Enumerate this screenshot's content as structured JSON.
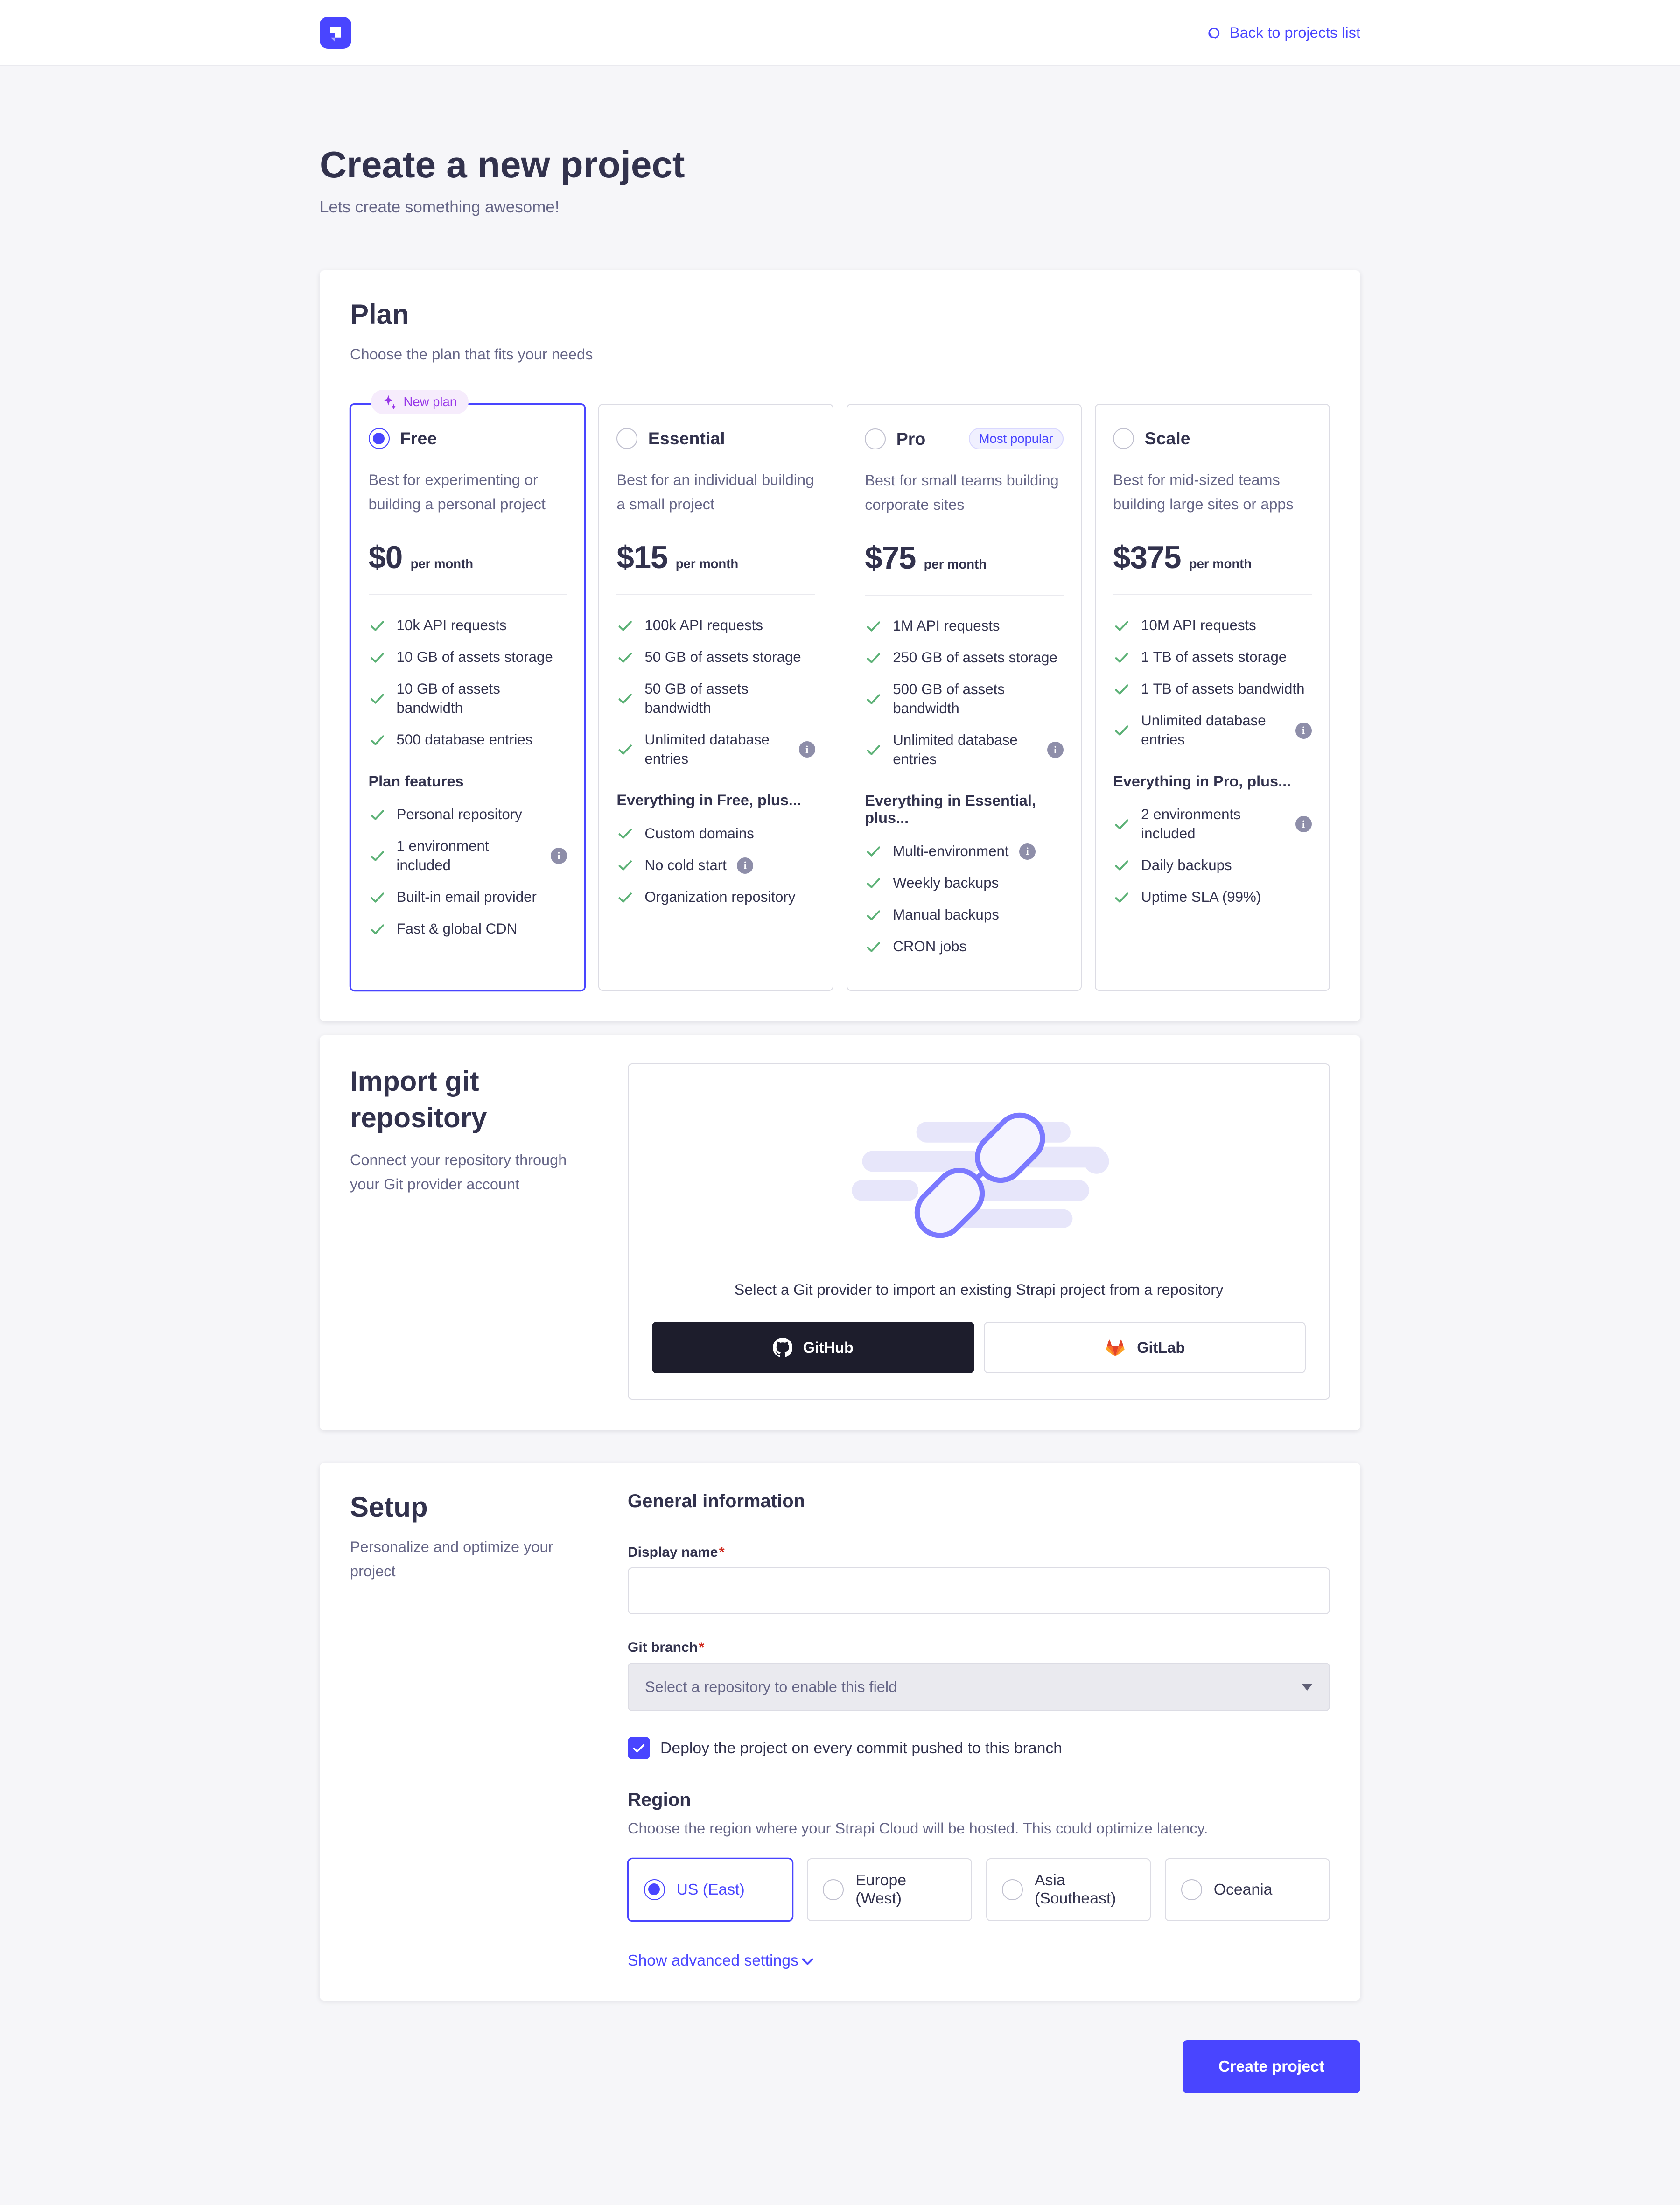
{
  "colors": {
    "primary": "#4945ff",
    "primary_light": "#f0f0ff",
    "purple_badge_bg": "#f6ecfc",
    "purple_badge_text": "#9736e8",
    "success_check": "#5cb176",
    "danger": "#d02b20",
    "text_dark": "#32324d",
    "text_gray": "#666687",
    "page_bg": "#f6f6f9",
    "github_btn_bg": "#1d1d2c",
    "gitlab_orange": "#fc6d26"
  },
  "icons": {
    "logo": "strapi-logo",
    "back": "curved-back-arrow",
    "sparkle": "sparkles",
    "check": "checkmark",
    "info": "info-circle",
    "github": "github-octocat",
    "gitlab": "gitlab-tanuki",
    "caret": "caret-down",
    "chevron": "chevron-down",
    "link_illustration": "chain-link"
  },
  "header": {
    "back_label": "Back to projects list"
  },
  "page": {
    "title": "Create a new project",
    "subtitle": "Lets create something awesome!"
  },
  "plan_section": {
    "title": "Plan",
    "subtitle": "Choose the plan that fits your needs",
    "plans": [
      {
        "id": "free",
        "name": "Free",
        "selected": true,
        "new_badge": "New plan",
        "popular_badge": "",
        "description": "Best for experimenting or building a personal project",
        "price": "$0",
        "period": "per month",
        "features": [
          {
            "label": "10k API requests",
            "info": false
          },
          {
            "label": "10 GB of assets storage",
            "info": false
          },
          {
            "label": "10 GB of assets bandwidth",
            "info": false
          },
          {
            "label": "500 database entries",
            "info": false
          }
        ],
        "group_title": "Plan features",
        "group_features": [
          {
            "label": "Personal repository",
            "info": false
          },
          {
            "label": "1 environment included",
            "info": true
          },
          {
            "label": "Built-in email provider",
            "info": false
          },
          {
            "label": "Fast & global CDN",
            "info": false
          }
        ]
      },
      {
        "id": "essential",
        "name": "Essential",
        "selected": false,
        "new_badge": "",
        "popular_badge": "",
        "description": "Best for an individual building a small project",
        "price": "$15",
        "period": "per month",
        "features": [
          {
            "label": "100k API requests",
            "info": false
          },
          {
            "label": "50 GB of assets storage",
            "info": false
          },
          {
            "label": "50 GB of assets bandwidth",
            "info": false
          },
          {
            "label": "Unlimited database entries",
            "info": true
          }
        ],
        "group_title": "Everything in Free, plus...",
        "group_features": [
          {
            "label": "Custom domains",
            "info": false
          },
          {
            "label": "No cold start",
            "info": true
          },
          {
            "label": "Organization repository",
            "info": false
          }
        ]
      },
      {
        "id": "pro",
        "name": "Pro",
        "selected": false,
        "new_badge": "",
        "popular_badge": "Most popular",
        "description": "Best for small teams building corporate sites",
        "price": "$75",
        "period": "per month",
        "features": [
          {
            "label": "1M API requests",
            "info": false
          },
          {
            "label": "250 GB of assets storage",
            "info": false
          },
          {
            "label": "500 GB of assets bandwidth",
            "info": false
          },
          {
            "label": "Unlimited database entries",
            "info": true
          }
        ],
        "group_title": "Everything in Essential, plus...",
        "group_features": [
          {
            "label": "Multi-environment",
            "info": true
          },
          {
            "label": "Weekly backups",
            "info": false
          },
          {
            "label": "Manual backups",
            "info": false
          },
          {
            "label": "CRON jobs",
            "info": false
          }
        ]
      },
      {
        "id": "scale",
        "name": "Scale",
        "selected": false,
        "new_badge": "",
        "popular_badge": "",
        "description": "Best for mid-sized teams building large sites or apps",
        "price": "$375",
        "period": "per month",
        "features": [
          {
            "label": "10M API requests",
            "info": false
          },
          {
            "label": "1 TB of assets storage",
            "info": false
          },
          {
            "label": "1 TB of assets bandwidth",
            "info": false
          },
          {
            "label": "Unlimited database entries",
            "info": true
          }
        ],
        "group_title": "Everything in Pro, plus...",
        "group_features": [
          {
            "label": "2 environments included",
            "info": true
          },
          {
            "label": "Daily backups",
            "info": false
          },
          {
            "label": "Uptime SLA (99%)",
            "info": false
          }
        ]
      }
    ]
  },
  "import_section": {
    "title": "Import git repository",
    "subtitle": "Connect your repository through your Git provider account",
    "box_text": "Select a Git provider to import an existing Strapi project from a repository",
    "github_label": "GitHub",
    "gitlab_label": "GitLab"
  },
  "setup_section": {
    "title": "Setup",
    "subtitle": "Personalize and optimize your project",
    "general_title": "General information",
    "display_name_label": "Display name",
    "required_mark": "*",
    "display_name_value": "",
    "git_branch_label": "Git branch",
    "git_branch_placeholder": "Select a repository to enable this field",
    "deploy_checkbox_label": "Deploy the project on every commit pushed to this branch",
    "deploy_checked": true,
    "region_title": "Region",
    "region_subtitle": "Choose the region where your Strapi Cloud will be hosted. This could optimize latency.",
    "regions": [
      {
        "label": "US (East)",
        "selected": true
      },
      {
        "label": "Europe (West)",
        "selected": false
      },
      {
        "label": "Asia (Southeast)",
        "selected": false
      },
      {
        "label": "Oceania",
        "selected": false
      }
    ],
    "advanced_link": "Show advanced settings"
  },
  "footer": {
    "create_button": "Create project"
  }
}
